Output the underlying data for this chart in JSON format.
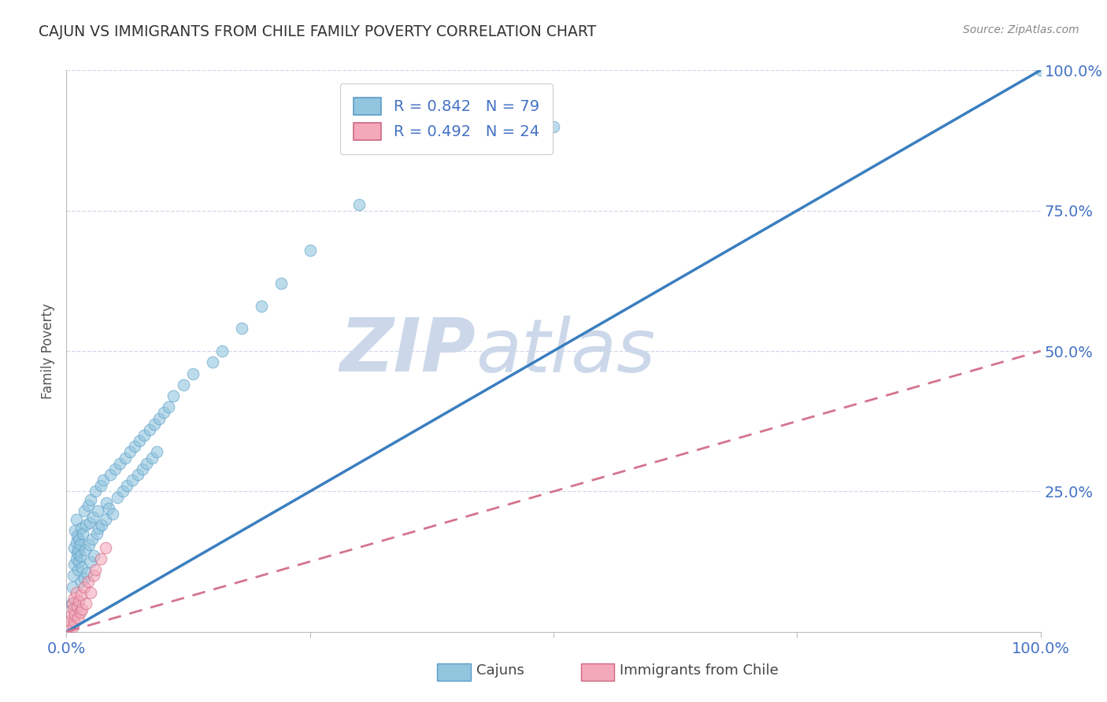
{
  "title": "CAJUN VS IMMIGRANTS FROM CHILE FAMILY POVERTY CORRELATION CHART",
  "source": "Source: ZipAtlas.com",
  "ylabel": "Family Poverty",
  "xlim": [
    0,
    1.0
  ],
  "ylim": [
    0,
    1.0
  ],
  "xticks": [
    0,
    0.25,
    0.5,
    0.75,
    1.0
  ],
  "yticks": [
    0.25,
    0.5,
    0.75,
    1.0
  ],
  "xtick_labels": [
    "0.0%",
    "",
    "",
    "",
    "100.0%"
  ],
  "ytick_labels": [
    "25.0%",
    "50.0%",
    "75.0%",
    "100.0%"
  ],
  "cajun_R": 0.842,
  "cajun_N": 79,
  "chile_R": 0.492,
  "chile_N": 24,
  "cajun_color": "#92c5de",
  "chile_color": "#f4a9bb",
  "cajun_line_color": "#3a7ebf",
  "chile_line_color": "#d4748e",
  "cajun_edge_color": "#5b9dc8",
  "chile_edge_color": "#cc6680",
  "watermark_color": "#ccd8ea",
  "background_color": "#ffffff",
  "grid_color": "#d0d8e8",
  "title_color": "#333333",
  "tick_color": "#4472c4",
  "source_color": "#888888",
  "ylabel_color": "#555555",
  "legend_label_color": "#4472c4",
  "cajun_x": [
    0.005,
    0.006,
    0.007,
    0.008,
    0.008,
    0.009,
    0.01,
    0.01,
    0.01,
    0.011,
    0.011,
    0.012,
    0.012,
    0.013,
    0.013,
    0.014,
    0.014,
    0.015,
    0.015,
    0.016,
    0.017,
    0.018,
    0.018,
    0.019,
    0.02,
    0.021,
    0.022,
    0.023,
    0.024,
    0.025,
    0.025,
    0.026,
    0.027,
    0.028,
    0.03,
    0.031,
    0.032,
    0.033,
    0.035,
    0.036,
    0.038,
    0.04,
    0.041,
    0.043,
    0.045,
    0.047,
    0.05,
    0.052,
    0.055,
    0.058,
    0.06,
    0.062,
    0.065,
    0.068,
    0.07,
    0.073,
    0.075,
    0.078,
    0.08,
    0.082,
    0.085,
    0.088,
    0.09,
    0.093,
    0.095,
    0.1,
    0.105,
    0.11,
    0.12,
    0.13,
    0.15,
    0.16,
    0.18,
    0.2,
    0.22,
    0.25,
    0.3,
    0.5,
    1.0
  ],
  "cajun_y": [
    0.05,
    0.08,
    0.1,
    0.12,
    0.15,
    0.18,
    0.13,
    0.16,
    0.2,
    0.14,
    0.17,
    0.11,
    0.145,
    0.125,
    0.165,
    0.135,
    0.155,
    0.09,
    0.185,
    0.115,
    0.175,
    0.095,
    0.215,
    0.145,
    0.19,
    0.105,
    0.225,
    0.155,
    0.195,
    0.125,
    0.235,
    0.165,
    0.205,
    0.135,
    0.25,
    0.175,
    0.215,
    0.185,
    0.26,
    0.19,
    0.27,
    0.2,
    0.23,
    0.22,
    0.28,
    0.21,
    0.29,
    0.24,
    0.3,
    0.25,
    0.31,
    0.26,
    0.32,
    0.27,
    0.33,
    0.28,
    0.34,
    0.29,
    0.35,
    0.3,
    0.36,
    0.31,
    0.37,
    0.32,
    0.38,
    0.39,
    0.4,
    0.42,
    0.44,
    0.46,
    0.48,
    0.5,
    0.54,
    0.58,
    0.62,
    0.68,
    0.76,
    0.9,
    1.0
  ],
  "chile_x": [
    0.003,
    0.004,
    0.005,
    0.006,
    0.007,
    0.007,
    0.008,
    0.008,
    0.009,
    0.01,
    0.011,
    0.012,
    0.013,
    0.014,
    0.015,
    0.016,
    0.018,
    0.02,
    0.022,
    0.025,
    0.028,
    0.03,
    0.035,
    0.04
  ],
  "chile_y": [
    0.01,
    0.02,
    0.03,
    0.05,
    0.01,
    0.04,
    0.02,
    0.06,
    0.03,
    0.07,
    0.045,
    0.025,
    0.055,
    0.035,
    0.065,
    0.04,
    0.08,
    0.05,
    0.09,
    0.07,
    0.1,
    0.11,
    0.13,
    0.15
  ],
  "cajun_line_x0": 0.0,
  "cajun_line_x1": 1.0,
  "cajun_line_y0": 0.0,
  "cajun_line_y1": 1.0,
  "chile_line_x0": 0.0,
  "chile_line_x1": 1.0,
  "chile_line_y0": 0.0,
  "chile_line_y1": 0.5
}
